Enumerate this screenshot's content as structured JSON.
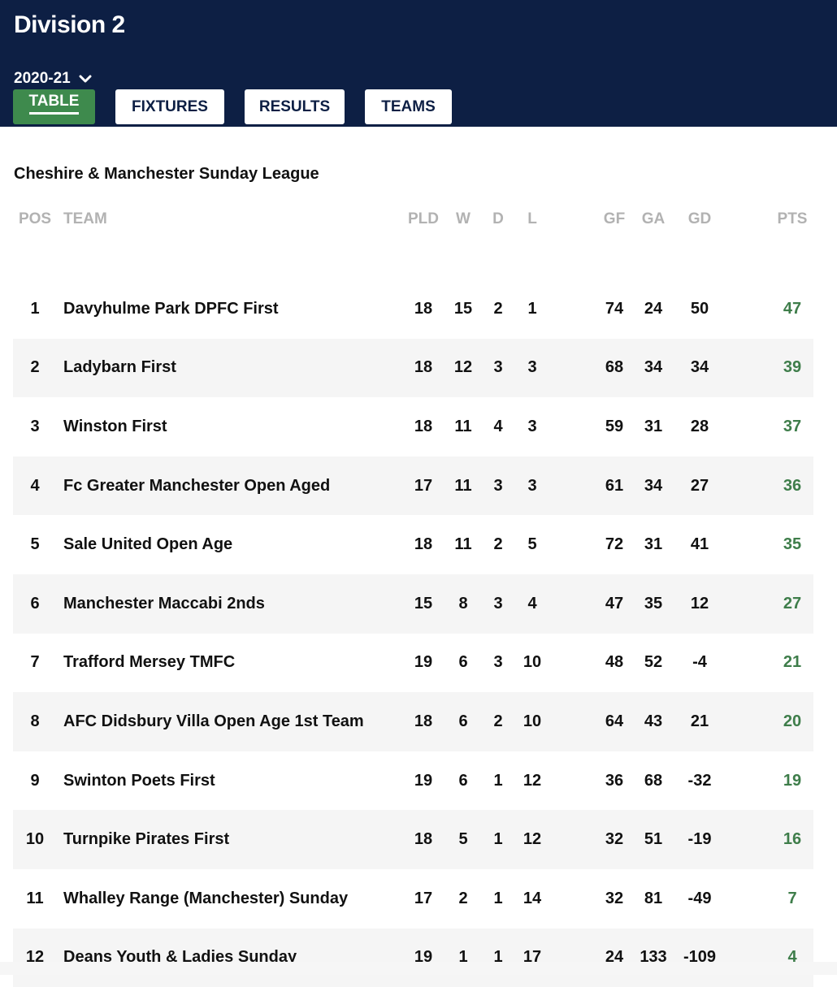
{
  "header": {
    "title": "Division 2",
    "season": "2020-21",
    "tabs": [
      {
        "label": "TABLE"
      },
      {
        "label": "FIXTURES"
      },
      {
        "label": "RESULTS"
      },
      {
        "label": "TEAMS"
      }
    ]
  },
  "league": "Cheshire & Manchester Sunday League",
  "columns": {
    "pos": "POS",
    "team": "TEAM",
    "pld": "PLD",
    "w": "W",
    "d": "D",
    "l": "L",
    "gf": "GF",
    "ga": "GA",
    "gd": "GD",
    "pts": "PTS"
  },
  "rows": [
    {
      "pos": "1",
      "team": "Davyhulme Park DPFC First",
      "pld": "18",
      "w": "15",
      "d": "2",
      "l": "1",
      "gf": "74",
      "ga": "24",
      "gd": "50",
      "pts": "47"
    },
    {
      "pos": "2",
      "team": "Ladybarn First",
      "pld": "18",
      "w": "12",
      "d": "3",
      "l": "3",
      "gf": "68",
      "ga": "34",
      "gd": "34",
      "pts": "39"
    },
    {
      "pos": "3",
      "team": "Winston First",
      "pld": "18",
      "w": "11",
      "d": "4",
      "l": "3",
      "gf": "59",
      "ga": "31",
      "gd": "28",
      "pts": "37"
    },
    {
      "pos": "4",
      "team": "Fc Greater Manchester Open Aged",
      "pld": "17",
      "w": "11",
      "d": "3",
      "l": "3",
      "gf": "61",
      "ga": "34",
      "gd": "27",
      "pts": "36"
    },
    {
      "pos": "5",
      "team": "Sale United Open Age",
      "pld": "18",
      "w": "11",
      "d": "2",
      "l": "5",
      "gf": "72",
      "ga": "31",
      "gd": "41",
      "pts": "35"
    },
    {
      "pos": "6",
      "team": "Manchester Maccabi 2nds",
      "pld": "15",
      "w": "8",
      "d": "3",
      "l": "4",
      "gf": "47",
      "ga": "35",
      "gd": "12",
      "pts": "27"
    },
    {
      "pos": "7",
      "team": "Trafford Mersey TMFC",
      "pld": "19",
      "w": "6",
      "d": "3",
      "l": "10",
      "gf": "48",
      "ga": "52",
      "gd": "-4",
      "pts": "21"
    },
    {
      "pos": "8",
      "team": "AFC Didsbury Villa Open Age 1st Team",
      "pld": "18",
      "w": "6",
      "d": "2",
      "l": "10",
      "gf": "64",
      "ga": "43",
      "gd": "21",
      "pts": "20"
    },
    {
      "pos": "9",
      "team": "Swinton Poets First",
      "pld": "19",
      "w": "6",
      "d": "1",
      "l": "12",
      "gf": "36",
      "ga": "68",
      "gd": "-32",
      "pts": "19"
    },
    {
      "pos": "10",
      "team": "Turnpike Pirates First",
      "pld": "18",
      "w": "5",
      "d": "1",
      "l": "12",
      "gf": "32",
      "ga": "51",
      "gd": "-19",
      "pts": "16"
    },
    {
      "pos": "11",
      "team": "Whalley Range (Manchester) Sunday",
      "pld": "17",
      "w": "2",
      "d": "1",
      "l": "14",
      "gf": "32",
      "ga": "81",
      "gd": "-49",
      "pts": "7"
    },
    {
      "pos": "12",
      "team": "Deans Youth & Ladies Sunday",
      "pld": "19",
      "w": "1",
      "d": "1",
      "l": "17",
      "gf": "24",
      "ga": "133",
      "gd": "-109",
      "pts": "4"
    }
  ],
  "colors": {
    "header_bg": "#0d1f44",
    "active_tab": "#3e8a4d",
    "points": "#3e7d4a",
    "alt_row": "#f5f5f5"
  }
}
